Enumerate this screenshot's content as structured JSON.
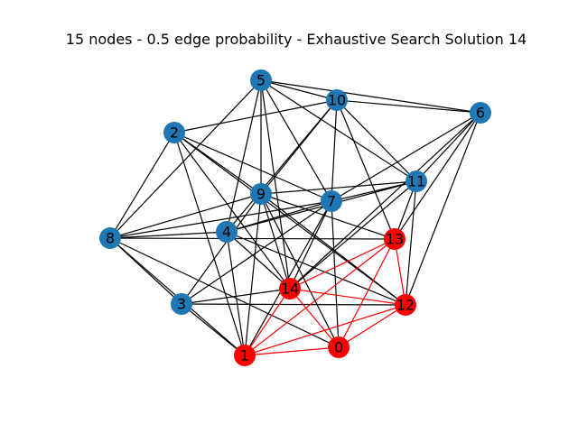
{
  "title": "15 nodes - 0.5 edge probability - Exhaustive Search Solution 14",
  "colors": {
    "default_node": "#1f77b4",
    "highlight_node": "#ff0000",
    "default_edge": "#000000",
    "highlight_edge": "#ff0000",
    "label": "#000000"
  },
  "graph": {
    "node_count": 15,
    "edge_probability": 0.5,
    "solution_id": 14,
    "nodes": [
      {
        "id": "0",
        "label": "0",
        "highlighted": true
      },
      {
        "id": "1",
        "label": "1",
        "highlighted": true
      },
      {
        "id": "2",
        "label": "2",
        "highlighted": false
      },
      {
        "id": "3",
        "label": "3",
        "highlighted": false
      },
      {
        "id": "4",
        "label": "4",
        "highlighted": false
      },
      {
        "id": "5",
        "label": "5",
        "highlighted": false
      },
      {
        "id": "6",
        "label": "6",
        "highlighted": false
      },
      {
        "id": "7",
        "label": "7",
        "highlighted": false
      },
      {
        "id": "8",
        "label": "8",
        "highlighted": false
      },
      {
        "id": "9",
        "label": "9",
        "highlighted": false
      },
      {
        "id": "10",
        "label": "10",
        "highlighted": false
      },
      {
        "id": "11",
        "label": "11",
        "highlighted": false
      },
      {
        "id": "12",
        "label": "12",
        "highlighted": true
      },
      {
        "id": "13",
        "label": "13",
        "highlighted": true
      },
      {
        "id": "14",
        "label": "14",
        "highlighted": true
      }
    ],
    "edges": [
      [
        "1",
        "0"
      ],
      [
        "1",
        "12"
      ],
      [
        "1",
        "13"
      ],
      [
        "1",
        "14"
      ],
      [
        "0",
        "12"
      ],
      [
        "0",
        "13"
      ],
      [
        "0",
        "14"
      ],
      [
        "12",
        "13"
      ],
      [
        "12",
        "14"
      ],
      [
        "13",
        "14"
      ],
      [
        "5",
        "10"
      ],
      [
        "5",
        "6"
      ],
      [
        "5",
        "11"
      ],
      [
        "5",
        "7"
      ],
      [
        "5",
        "9"
      ],
      [
        "5",
        "4"
      ],
      [
        "5",
        "8"
      ],
      [
        "5",
        "14"
      ],
      [
        "10",
        "6"
      ],
      [
        "10",
        "2"
      ],
      [
        "10",
        "9"
      ],
      [
        "10",
        "4"
      ],
      [
        "10",
        "7"
      ],
      [
        "10",
        "13"
      ],
      [
        "10",
        "11"
      ],
      [
        "2",
        "8"
      ],
      [
        "2",
        "9"
      ],
      [
        "2",
        "7"
      ],
      [
        "2",
        "14"
      ],
      [
        "2",
        "12"
      ],
      [
        "2",
        "1"
      ],
      [
        "6",
        "11"
      ],
      [
        "6",
        "7"
      ],
      [
        "6",
        "13"
      ],
      [
        "6",
        "14"
      ],
      [
        "6",
        "12"
      ],
      [
        "11",
        "9"
      ],
      [
        "11",
        "4"
      ],
      [
        "11",
        "14"
      ],
      [
        "11",
        "12"
      ],
      [
        "11",
        "13"
      ],
      [
        "11",
        "7"
      ],
      [
        "9",
        "8"
      ],
      [
        "9",
        "13"
      ],
      [
        "9",
        "12"
      ],
      [
        "9",
        "0"
      ],
      [
        "9",
        "3"
      ],
      [
        "9",
        "1"
      ],
      [
        "9",
        "14"
      ],
      [
        "7",
        "4"
      ],
      [
        "7",
        "8"
      ],
      [
        "7",
        "0"
      ],
      [
        "7",
        "14"
      ],
      [
        "7",
        "1"
      ],
      [
        "7",
        "3"
      ],
      [
        "8",
        "4"
      ],
      [
        "8",
        "13"
      ],
      [
        "8",
        "3"
      ],
      [
        "8",
        "1"
      ],
      [
        "8",
        "0"
      ],
      [
        "4",
        "12"
      ],
      [
        "4",
        "1"
      ],
      [
        "4",
        "14"
      ],
      [
        "3",
        "14"
      ],
      [
        "3",
        "12"
      ],
      [
        "3",
        "1"
      ]
    ]
  }
}
